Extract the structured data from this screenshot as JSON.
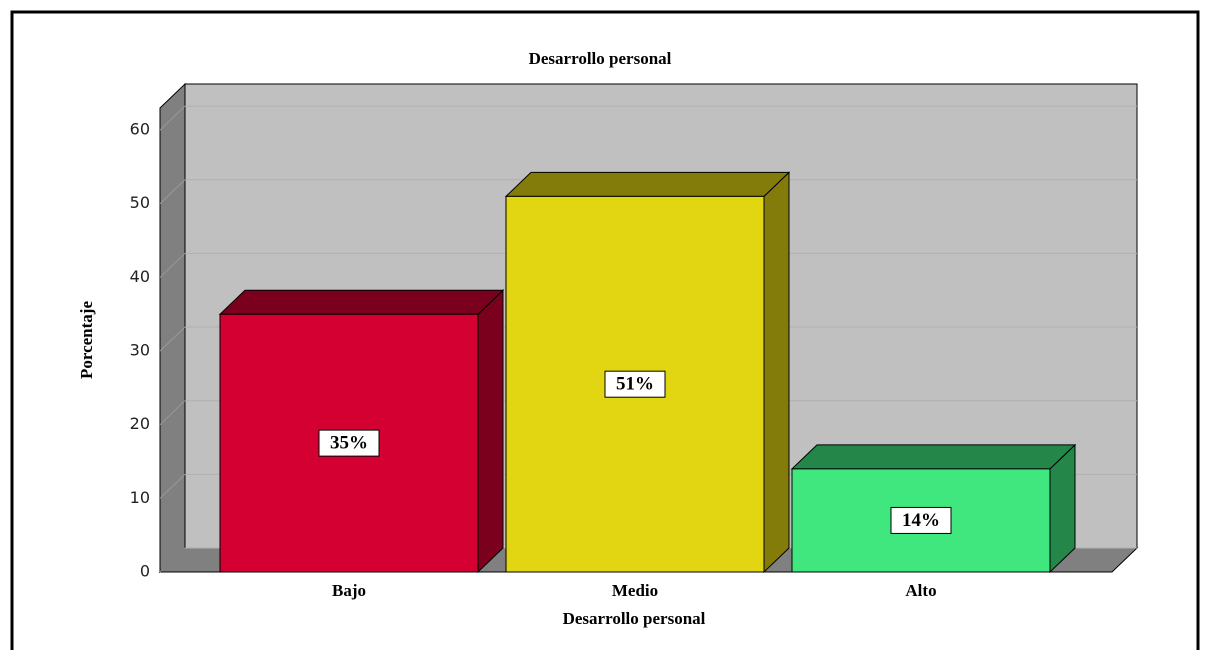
{
  "chart_data": {
    "type": "bar3d",
    "title": "Desarrollo personal",
    "x_label": "Desarrollo personal",
    "y_label": "Porcentaje",
    "categories": [
      "Bajo",
      "Medio",
      "Alto"
    ],
    "values": [
      35,
      51,
      14
    ],
    "value_labels": [
      "35%",
      "51%",
      "14%"
    ],
    "colors": [
      "#d40032",
      "#e2d511",
      "#40e77e"
    ],
    "ylim": [
      0,
      63
    ],
    "yticks": [
      0,
      10,
      20,
      30,
      40,
      50,
      60
    ],
    "grid": true
  }
}
